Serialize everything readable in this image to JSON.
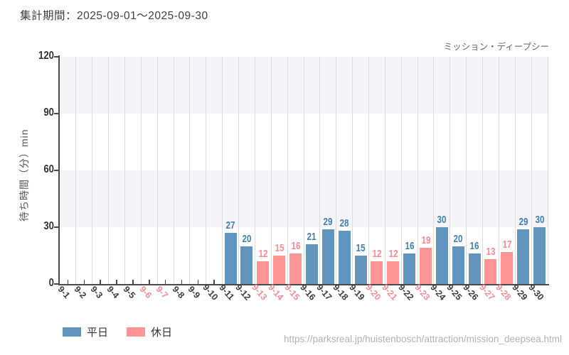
{
  "page": {
    "title": "集計期間：2025-09-01～2025-09-30",
    "attraction_name": "ミッション・ディープシー",
    "source_url": "https://parksreal.jp/huistenbosch/attraction/mission_deepsea.html"
  },
  "legend": {
    "items": [
      {
        "label": "平日",
        "color": "#6295be"
      },
      {
        "label": "休日",
        "color": "#fd9595"
      }
    ]
  },
  "colors": {
    "weekday_bar": "#6295be",
    "holiday_bar": "#fd9595",
    "weekday_value_label": "#447fad",
    "holiday_value_label": "#f98c92",
    "weekday_tick_label": "#3d3d3d",
    "holiday_tick_label": "#f08d97",
    "axis": "#4a4a4a",
    "band": "#f4f4f6",
    "gridline": "#dcdcdc"
  },
  "chart_data": {
    "type": "bar",
    "title": "集計期間：2025-09-01～2025-09-30",
    "ylabel": "待ち時間（分）min",
    "ylim": [
      0,
      120
    ],
    "yticks": [
      0,
      30,
      60,
      90,
      120
    ],
    "grid": "horizontal-bands-and-vertical-lines",
    "legend_position": "bottom-left",
    "categories": [
      "9-1",
      "9-2",
      "9-3",
      "9-4",
      "9-5",
      "9-6",
      "9-7",
      "9-8",
      "9-9",
      "9-10",
      "9-11",
      "9-12",
      "9-13",
      "9-14",
      "9-15",
      "9-16",
      "9-17",
      "9-18",
      "9-19",
      "9-20",
      "9-21",
      "9-22",
      "9-23",
      "9-24",
      "9-25",
      "9-26",
      "9-27",
      "9-28",
      "9-29",
      "9-30"
    ],
    "values": [
      null,
      null,
      null,
      null,
      null,
      null,
      null,
      null,
      null,
      null,
      27,
      20,
      12,
      15,
      16,
      21,
      29,
      28,
      15,
      12,
      12,
      16,
      19,
      30,
      20,
      16,
      13,
      17,
      29,
      30
    ],
    "series_of": [
      null,
      null,
      null,
      null,
      null,
      null,
      null,
      null,
      null,
      null,
      "平日",
      "平日",
      "休日",
      "休日",
      "休日",
      "平日",
      "平日",
      "平日",
      "平日",
      "休日",
      "休日",
      "平日",
      "休日",
      "平日",
      "平日",
      "平日",
      "休日",
      "休日",
      "平日",
      "平日"
    ],
    "series": [
      {
        "name": "平日",
        "color": "#6295be"
      },
      {
        "name": "休日",
        "color": "#fd9595"
      }
    ],
    "holiday_categories": [
      "9-6",
      "9-7",
      "9-13",
      "9-14",
      "9-15",
      "9-20",
      "9-21",
      "9-23",
      "9-27",
      "9-28"
    ]
  }
}
